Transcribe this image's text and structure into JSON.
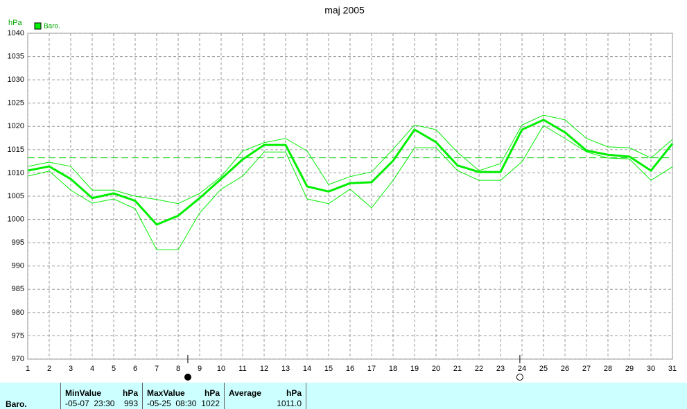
{
  "chart_data": {
    "type": "line",
    "title": "maj 2005",
    "y_label": "hPa",
    "x": [
      1,
      2,
      3,
      4,
      5,
      6,
      7,
      8,
      9,
      10,
      11,
      12,
      13,
      14,
      15,
      16,
      17,
      18,
      19,
      20,
      21,
      22,
      23,
      24,
      25,
      26,
      27,
      28,
      29,
      30,
      31
    ],
    "xlim": [
      1,
      31
    ],
    "xticks": [
      1,
      2,
      3,
      4,
      5,
      6,
      7,
      8,
      9,
      10,
      11,
      12,
      13,
      14,
      15,
      16,
      17,
      18,
      19,
      20,
      21,
      22,
      23,
      24,
      25,
      26,
      27,
      28,
      29,
      30,
      31
    ],
    "ylim": [
      970,
      1040
    ],
    "yticks": [
      970,
      975,
      980,
      985,
      990,
      995,
      1000,
      1005,
      1010,
      1015,
      1020,
      1025,
      1030,
      1035,
      1040
    ],
    "grid": true,
    "legend": "top-left",
    "series": [
      {
        "name": "Baro.",
        "color": "#00ee00",
        "width": 3,
        "values": [
          1010.5,
          1011.4,
          1008.7,
          1004.6,
          1005.6,
          1004.0,
          998.9,
          1000.8,
          1004.6,
          1008.7,
          1012.9,
          1016.0,
          1016.0,
          1007.1,
          1006.0,
          1007.8,
          1008.0,
          1012.6,
          1019.3,
          1016.6,
          1011.6,
          1010.2,
          1010.2,
          1019.3,
          1021.4,
          1018.7,
          1014.8,
          1013.9,
          1013.5,
          1010.5,
          1016.3
        ]
      },
      {
        "color": "#00ee00",
        "width": 1,
        "values": [
          1011.4,
          1012.3,
          1011.4,
          1006.3,
          1006.3,
          1005.0,
          1004.3,
          1003.4,
          1005.6,
          1009.2,
          1014.7,
          1016.5,
          1017.4,
          1014.7,
          1007.5,
          1009.2,
          1010.2,
          1015.1,
          1020.3,
          1019.3,
          1014.4,
          1010.5,
          1012.0,
          1020.3,
          1022.4,
          1021.4,
          1017.4,
          1015.6,
          1015.4,
          1013.2,
          1017.2
        ]
      },
      {
        "color": "#00ee00",
        "width": 1,
        "values": [
          1009.3,
          1010.4,
          1006.3,
          1003.5,
          1004.4,
          1002.3,
          993.5,
          993.5,
          1001.4,
          1006.5,
          1009.3,
          1014.5,
          1014.5,
          1004.4,
          1003.4,
          1006.5,
          1002.5,
          1008.4,
          1015.4,
          1015.4,
          1010.5,
          1008.4,
          1008.4,
          1012.4,
          1020.2,
          1017.4,
          1014.5,
          1013.2,
          1013.0,
          1008.4,
          1011.3
        ]
      }
    ],
    "reference_line": 1013.25,
    "moon_phases": [
      {
        "x": 8.45,
        "filled": true
      },
      {
        "x": 23.9,
        "filled": false
      }
    ]
  },
  "stats": {
    "row_label": "Baro.",
    "columns": [
      {
        "title": "MinValue",
        "unit": "hPa",
        "time": "-05-07  23:30",
        "value": "993"
      },
      {
        "title": "MaxValue",
        "unit": "hPa",
        "time": "-05-25  08:30",
        "value": "1022"
      },
      {
        "title": "Average",
        "unit": "hPa",
        "time": "",
        "value": "1011.0"
      }
    ]
  }
}
